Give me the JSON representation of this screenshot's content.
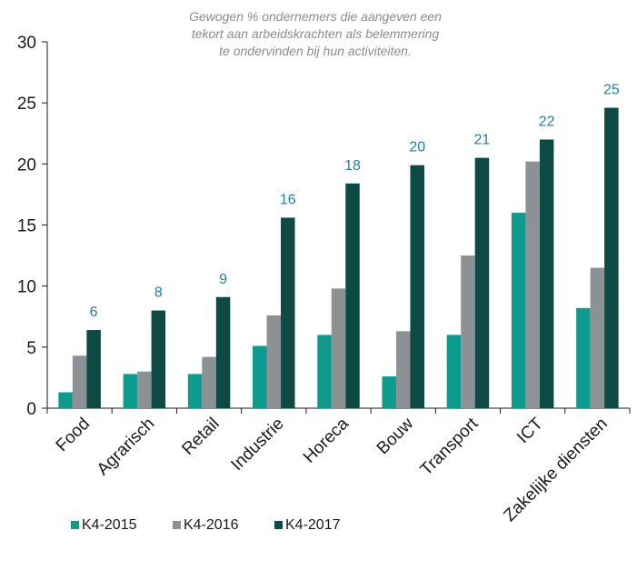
{
  "chart_data": {
    "type": "bar",
    "title_lines": [
      "Gewogen % ondernemers die aangeven een",
      "tekort aan arbeidskrachten als belemmering",
      "te ondervinden bij hun activiteiten."
    ],
    "categories": [
      "Food",
      "Agrarisch",
      "Retail",
      "Industrie",
      "Horeca",
      "Bouw",
      "Transport",
      "ICT",
      "Zakelijke diensten"
    ],
    "series": [
      {
        "name": "K4-2015",
        "color": "#0e9a8c",
        "values": [
          1.3,
          2.8,
          2.8,
          5.1,
          6.0,
          2.6,
          6.0,
          16.0,
          8.2
        ]
      },
      {
        "name": "K4-2016",
        "color": "#8c9196",
        "values": [
          4.3,
          3.0,
          4.2,
          7.6,
          9.8,
          6.3,
          12.5,
          20.2,
          11.5
        ]
      },
      {
        "name": "K4-2017",
        "color": "#0d4a44",
        "values": [
          6.4,
          8.0,
          9.1,
          15.6,
          18.4,
          19.9,
          20.5,
          22.0,
          24.6
        ]
      }
    ],
    "data_labels": [
      "6",
      "8",
      "9",
      "16",
      "18",
      "20",
      "21",
      "22",
      "25"
    ],
    "data_label_color": "#1f7fa8",
    "yticks": [
      "0",
      "5",
      "10",
      "15",
      "20",
      "25",
      "30"
    ],
    "ylim": [
      0,
      30
    ],
    "grid": false,
    "legend_position": "bottom-left"
  }
}
